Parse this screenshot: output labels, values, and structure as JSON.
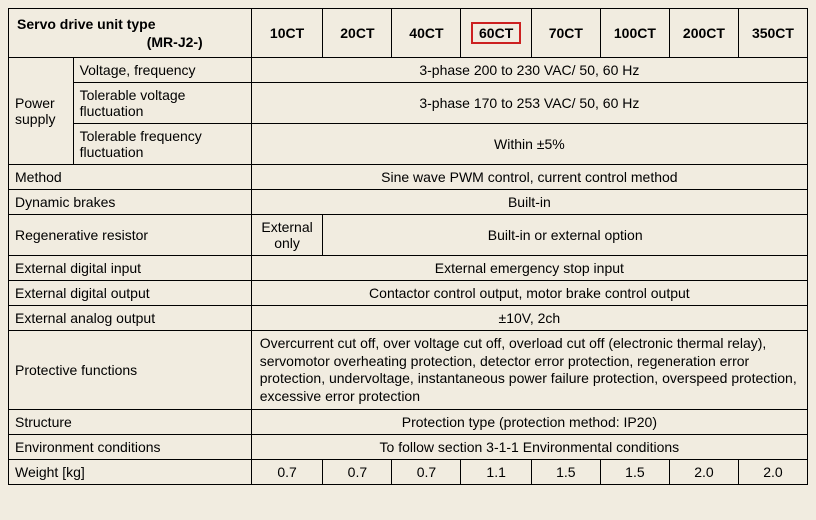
{
  "header": {
    "title": "Servo drive unit type",
    "subtitle": "(MR-J2-)"
  },
  "columns": [
    "10CT",
    "20CT",
    "40CT",
    "60CT",
    "70CT",
    "100CT",
    "200CT",
    "350CT"
  ],
  "highlight_col_index": 3,
  "highlight_color": "#cc2020",
  "rows": {
    "power_supply_label": "Power supply",
    "volt_freq_label": "Voltage, frequency",
    "volt_freq_val": "3-phase 200 to 230 VAC/ 50, 60 Hz",
    "tol_volt_label": "Tolerable voltage fluctuation",
    "tol_volt_val": "3-phase 170 to 253 VAC/ 50, 60 Hz",
    "tol_freq_label": "Tolerable frequency fluctuation",
    "tol_freq_val": "Within ±5%",
    "method_label": "Method",
    "method_val": "Sine wave PWM control, current control method",
    "dyn_label": "Dynamic brakes",
    "dyn_val": "Built-in",
    "regen_label": "Regenerative resistor",
    "regen_val1": "External only",
    "regen_val2": "Built-in or external option",
    "exdin_label": "External digital input",
    "exdin_val": "External emergency stop input",
    "exdout_label": "External digital output",
    "exdout_val": "Contactor control output, motor brake control output",
    "exaout_label": "External analog output",
    "exaout_val": "±10V, 2ch",
    "prot_label": "Protective functions",
    "prot_val": "Overcurrent cut off, over voltage cut off, overload cut off (electronic thermal relay), servomotor overheating protection, detector error protection, regeneration error protection, undervoltage, instantaneous power failure protection, overspeed protection, excessive error protection",
    "struct_label": "Structure",
    "struct_val": "Protection type (protection method: IP20)",
    "env_label": "Environment conditions",
    "env_val": "To follow section 3-1-1 Environmental conditions",
    "weight_label": "Weight [kg]",
    "weight_vals": [
      "0.7",
      "0.7",
      "0.7",
      "1.1",
      "1.5",
      "1.5",
      "2.0",
      "2.0"
    ]
  }
}
